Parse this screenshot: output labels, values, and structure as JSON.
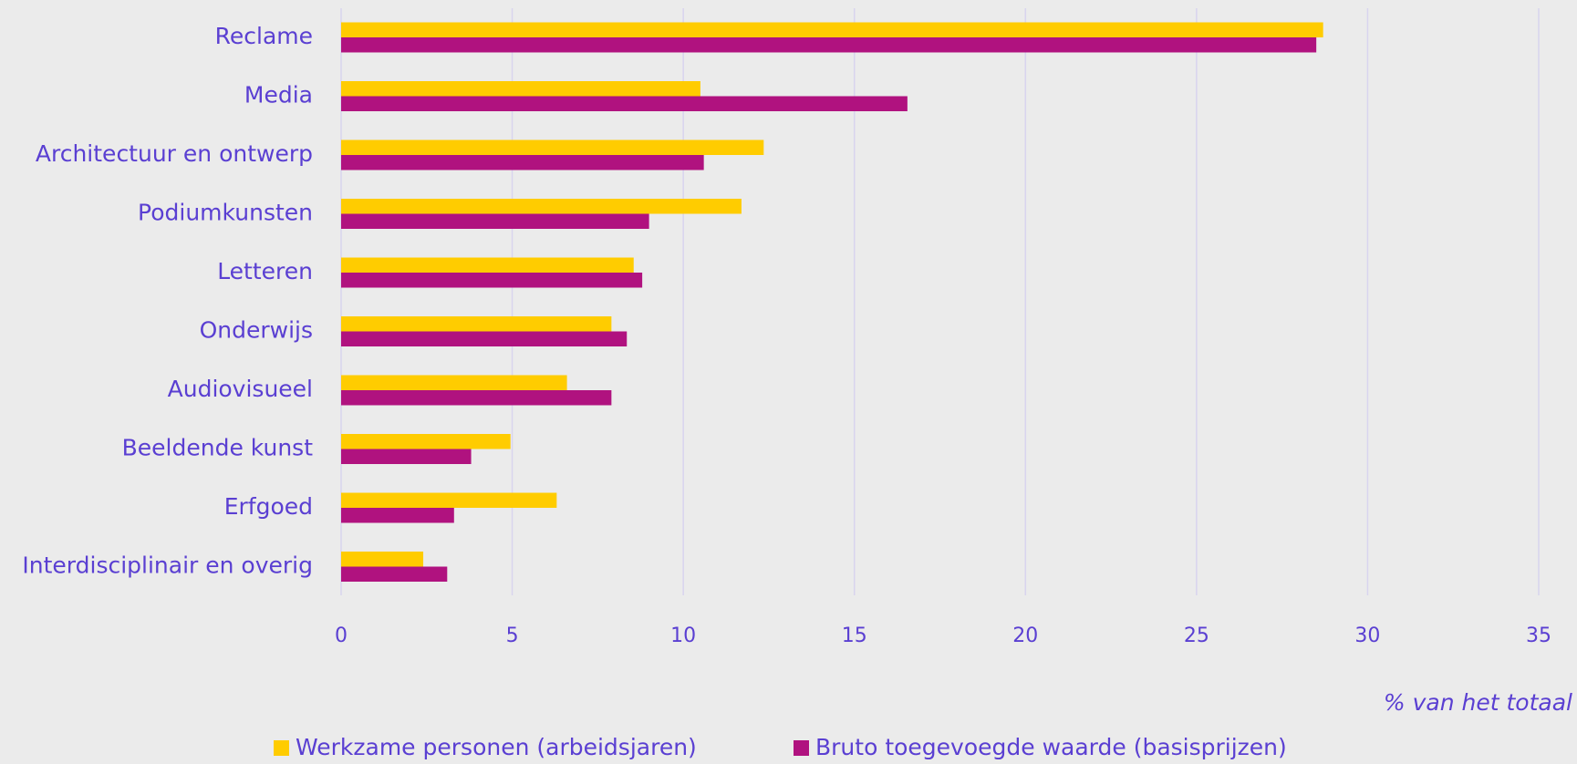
{
  "chart_data": {
    "type": "bar",
    "orientation": "horizontal",
    "categories": [
      "Reclame",
      "Media",
      "Architectuur en ontwerp",
      "Podiumkunsten",
      "Letteren",
      "Onderwijs",
      "Audiovisueel",
      "Beeldende kunst",
      "Erfgoed",
      "Interdisciplinair en overig"
    ],
    "series": [
      {
        "name": "Werkzame personen (arbeidsjaren)",
        "color": "#ffcc00",
        "values": [
          28.7,
          10.5,
          12.35,
          11.7,
          8.55,
          7.9,
          6.6,
          4.95,
          6.3,
          2.4
        ]
      },
      {
        "name": "Bruto toegevoegde waarde (basisprijzen)",
        "color": "#b0127f",
        "values": [
          28.5,
          16.55,
          10.6,
          9.0,
          8.8,
          8.35,
          7.9,
          3.8,
          3.3,
          3.1
        ]
      }
    ],
    "xlabel": "% van het totaal",
    "xlim": [
      0,
      35
    ],
    "xticks": [
      0,
      5,
      10,
      15,
      20,
      25,
      30,
      35
    ],
    "grid": true,
    "legend": "bottom"
  }
}
